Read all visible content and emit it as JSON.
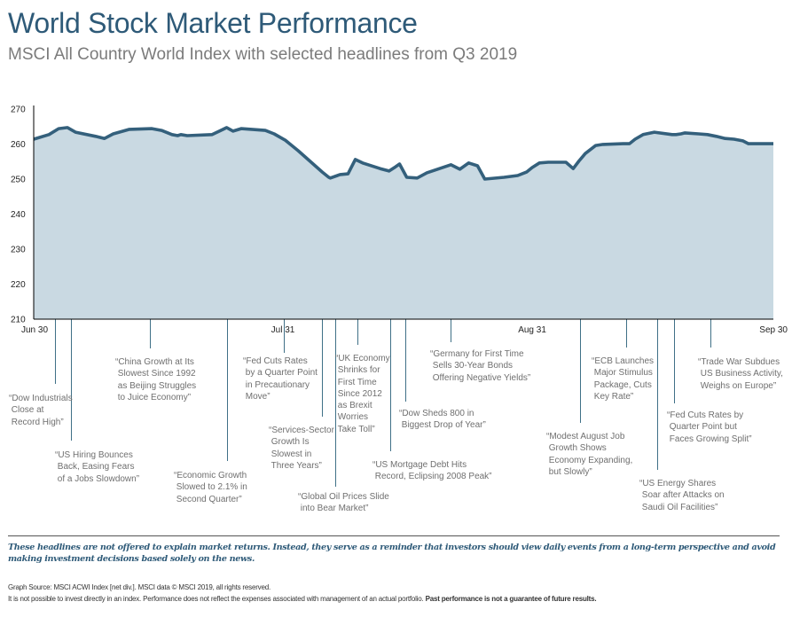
{
  "header": {
    "title": "World Stock Market Performance",
    "subtitle": "MSCI All Country World Index with selected headlines from Q3 2019"
  },
  "colors": {
    "title": "#2e5a78",
    "line": "#34607c",
    "area_fill": "#c9d9e2",
    "leader": "#3f7087",
    "headline_text": "#6f6f6f",
    "disclaimer": "#2e5a78"
  },
  "chart_data": {
    "type": "area",
    "title": "MSCI All Country World Index",
    "xlabel": "",
    "ylabel": "",
    "ylim": [
      210,
      270
    ],
    "yticks": [
      210,
      220,
      230,
      240,
      250,
      260,
      270
    ],
    "ytick_labels": [
      "210",
      "220",
      "230",
      "240",
      "250",
      "260",
      "270"
    ],
    "xlim_days": [
      0,
      92
    ],
    "xticks": [
      {
        "label": "Jun 30",
        "day": 0
      },
      {
        "label": "Jul 31",
        "day": 31
      },
      {
        "label": "Aug 31",
        "day": 62
      },
      {
        "label": "Sep 30",
        "day": 92
      }
    ],
    "grid": false,
    "legend": "none",
    "series": [
      {
        "name": "MSCI ACWI Index",
        "points": [
          [
            0.0,
            261.4
          ],
          [
            1.9,
            262.7
          ],
          [
            3.1,
            264.4
          ],
          [
            4.2,
            264.7
          ],
          [
            5.2,
            263.4
          ],
          [
            7.7,
            262.2
          ],
          [
            8.8,
            261.6
          ],
          [
            9.9,
            262.9
          ],
          [
            11.9,
            264.2
          ],
          [
            14.7,
            264.4
          ],
          [
            15.9,
            263.9
          ],
          [
            17.2,
            262.7
          ],
          [
            17.9,
            262.4
          ],
          [
            18.3,
            262.7
          ],
          [
            19.1,
            262.4
          ],
          [
            22.2,
            262.7
          ],
          [
            23.1,
            263.7
          ],
          [
            24.0,
            264.7
          ],
          [
            24.8,
            263.7
          ],
          [
            25.8,
            264.4
          ],
          [
            28.8,
            263.9
          ],
          [
            29.9,
            262.9
          ],
          [
            31.3,
            261.1
          ],
          [
            32.1,
            259.6
          ],
          [
            32.9,
            258.1
          ],
          [
            35.9,
            252.0
          ],
          [
            36.7,
            250.5
          ],
          [
            36.9,
            250.3
          ],
          [
            38.1,
            251.3
          ],
          [
            39.1,
            251.5
          ],
          [
            40.0,
            255.6
          ],
          [
            40.9,
            254.6
          ],
          [
            43.1,
            253.0
          ],
          [
            44.2,
            252.3
          ],
          [
            45.0,
            253.5
          ],
          [
            45.5,
            254.3
          ],
          [
            46.4,
            250.5
          ],
          [
            47.7,
            250.3
          ],
          [
            48.9,
            251.8
          ],
          [
            51.9,
            254.1
          ],
          [
            53.0,
            252.8
          ],
          [
            54.1,
            254.6
          ],
          [
            55.2,
            253.8
          ],
          [
            56.1,
            250.0
          ],
          [
            58.5,
            250.5
          ],
          [
            60.2,
            251.0
          ],
          [
            61.3,
            252.0
          ],
          [
            62.0,
            253.3
          ],
          [
            62.9,
            254.6
          ],
          [
            64.0,
            254.8
          ],
          [
            66.2,
            254.8
          ],
          [
            67.1,
            253.0
          ],
          [
            67.8,
            255.1
          ],
          [
            68.6,
            257.3
          ],
          [
            69.9,
            259.6
          ],
          [
            70.8,
            259.9
          ],
          [
            73.3,
            260.1
          ],
          [
            74.1,
            260.1
          ],
          [
            74.8,
            261.4
          ],
          [
            75.8,
            262.7
          ],
          [
            77.2,
            263.4
          ],
          [
            79.4,
            262.7
          ],
          [
            79.9,
            262.7
          ],
          [
            80.5,
            262.9
          ],
          [
            81.0,
            263.2
          ],
          [
            82.7,
            262.9
          ],
          [
            83.8,
            262.7
          ],
          [
            84.9,
            262.2
          ],
          [
            86.0,
            261.6
          ],
          [
            87.1,
            261.4
          ],
          [
            88.2,
            260.9
          ],
          [
            88.9,
            260.1
          ],
          [
            90.0,
            260.1
          ],
          [
            90.7,
            260.1
          ],
          [
            92.0,
            260.1
          ]
        ]
      }
    ],
    "annotations": [
      {
        "day": 2.6,
        "text": "“Dow Industrials\n Close at\n Record High”"
      },
      {
        "day": 4.6,
        "text": "“US Hiring Bounces\n Back, Easing Fears\n of a Jobs Slowdown”"
      },
      {
        "day": 14.5,
        "text": "“China Growth at Its\n Slowest Since 1992\n as Beijing Struggles\n to Juice Economy”"
      },
      {
        "day": 24.0,
        "text": "“Economic Growth\n Slowed to 2.1% in\n Second Quarter”"
      },
      {
        "day": 31.1,
        "text": "“Fed Cuts Rates\n by a Quarter Point\n in Precautionary\n Move”"
      },
      {
        "day": 35.8,
        "text": "“Services-Sector\n Growth Is\n Slowest in\n Three Years”"
      },
      {
        "day": 37.5,
        "text": "“Global Oil Prices Slide\n into Bear Market”"
      },
      {
        "day": 40.3,
        "text": "“UK Economy\n Shrinks for\n First Time\n Since 2012\n as Brexit\n Worries\n Take Toll”"
      },
      {
        "day": 44.3,
        "text": "“US Mortgage Debt Hits\n Record, Eclipsing 2008 Peak”"
      },
      {
        "day": 46.2,
        "text": "“Dow Sheds 800 in\n Biggest Drop of Year”"
      },
      {
        "day": 51.9,
        "text": "“Germany for First Time\n Sells 30-Year Bonds\n Offering Negative Yields”"
      },
      {
        "day": 68.0,
        "text": "“Modest August Job\n Growth Shows\n Economy Expanding,\n but Slowly”"
      },
      {
        "day": 73.7,
        "text": "“ECB Launches\n Major Stimulus\n Package, Cuts\n Key Rate”"
      },
      {
        "day": 77.5,
        "text": "“US Energy Shares\n Soar after Attacks on\n Saudi Oil Facilities”"
      },
      {
        "day": 79.6,
        "text": "“Fed Cuts Rates by\n Quarter Point but\n Faces Growing Split”"
      },
      {
        "day": 84.2,
        "text": "“Trade War Subdues\n US Business Activity,\n Weighs on Europe”"
      }
    ]
  },
  "footer": {
    "disclaimer": "These headlines are not offered to explain market returns. Instead, they serve as a reminder that investors should view daily events from a long-term perspective and avoid making investment decisions based solely on the news.",
    "source": "Graph Source: MSCI ACWI Index [net div.]. MSCI data © MSCI 2019, all rights reserved.",
    "legal_plain": "It is not possible to invest directly in an index. Performance does not reflect the expenses associated with management of an actual portfolio. ",
    "legal_bold": "Past performance is not a guarantee of future results."
  }
}
